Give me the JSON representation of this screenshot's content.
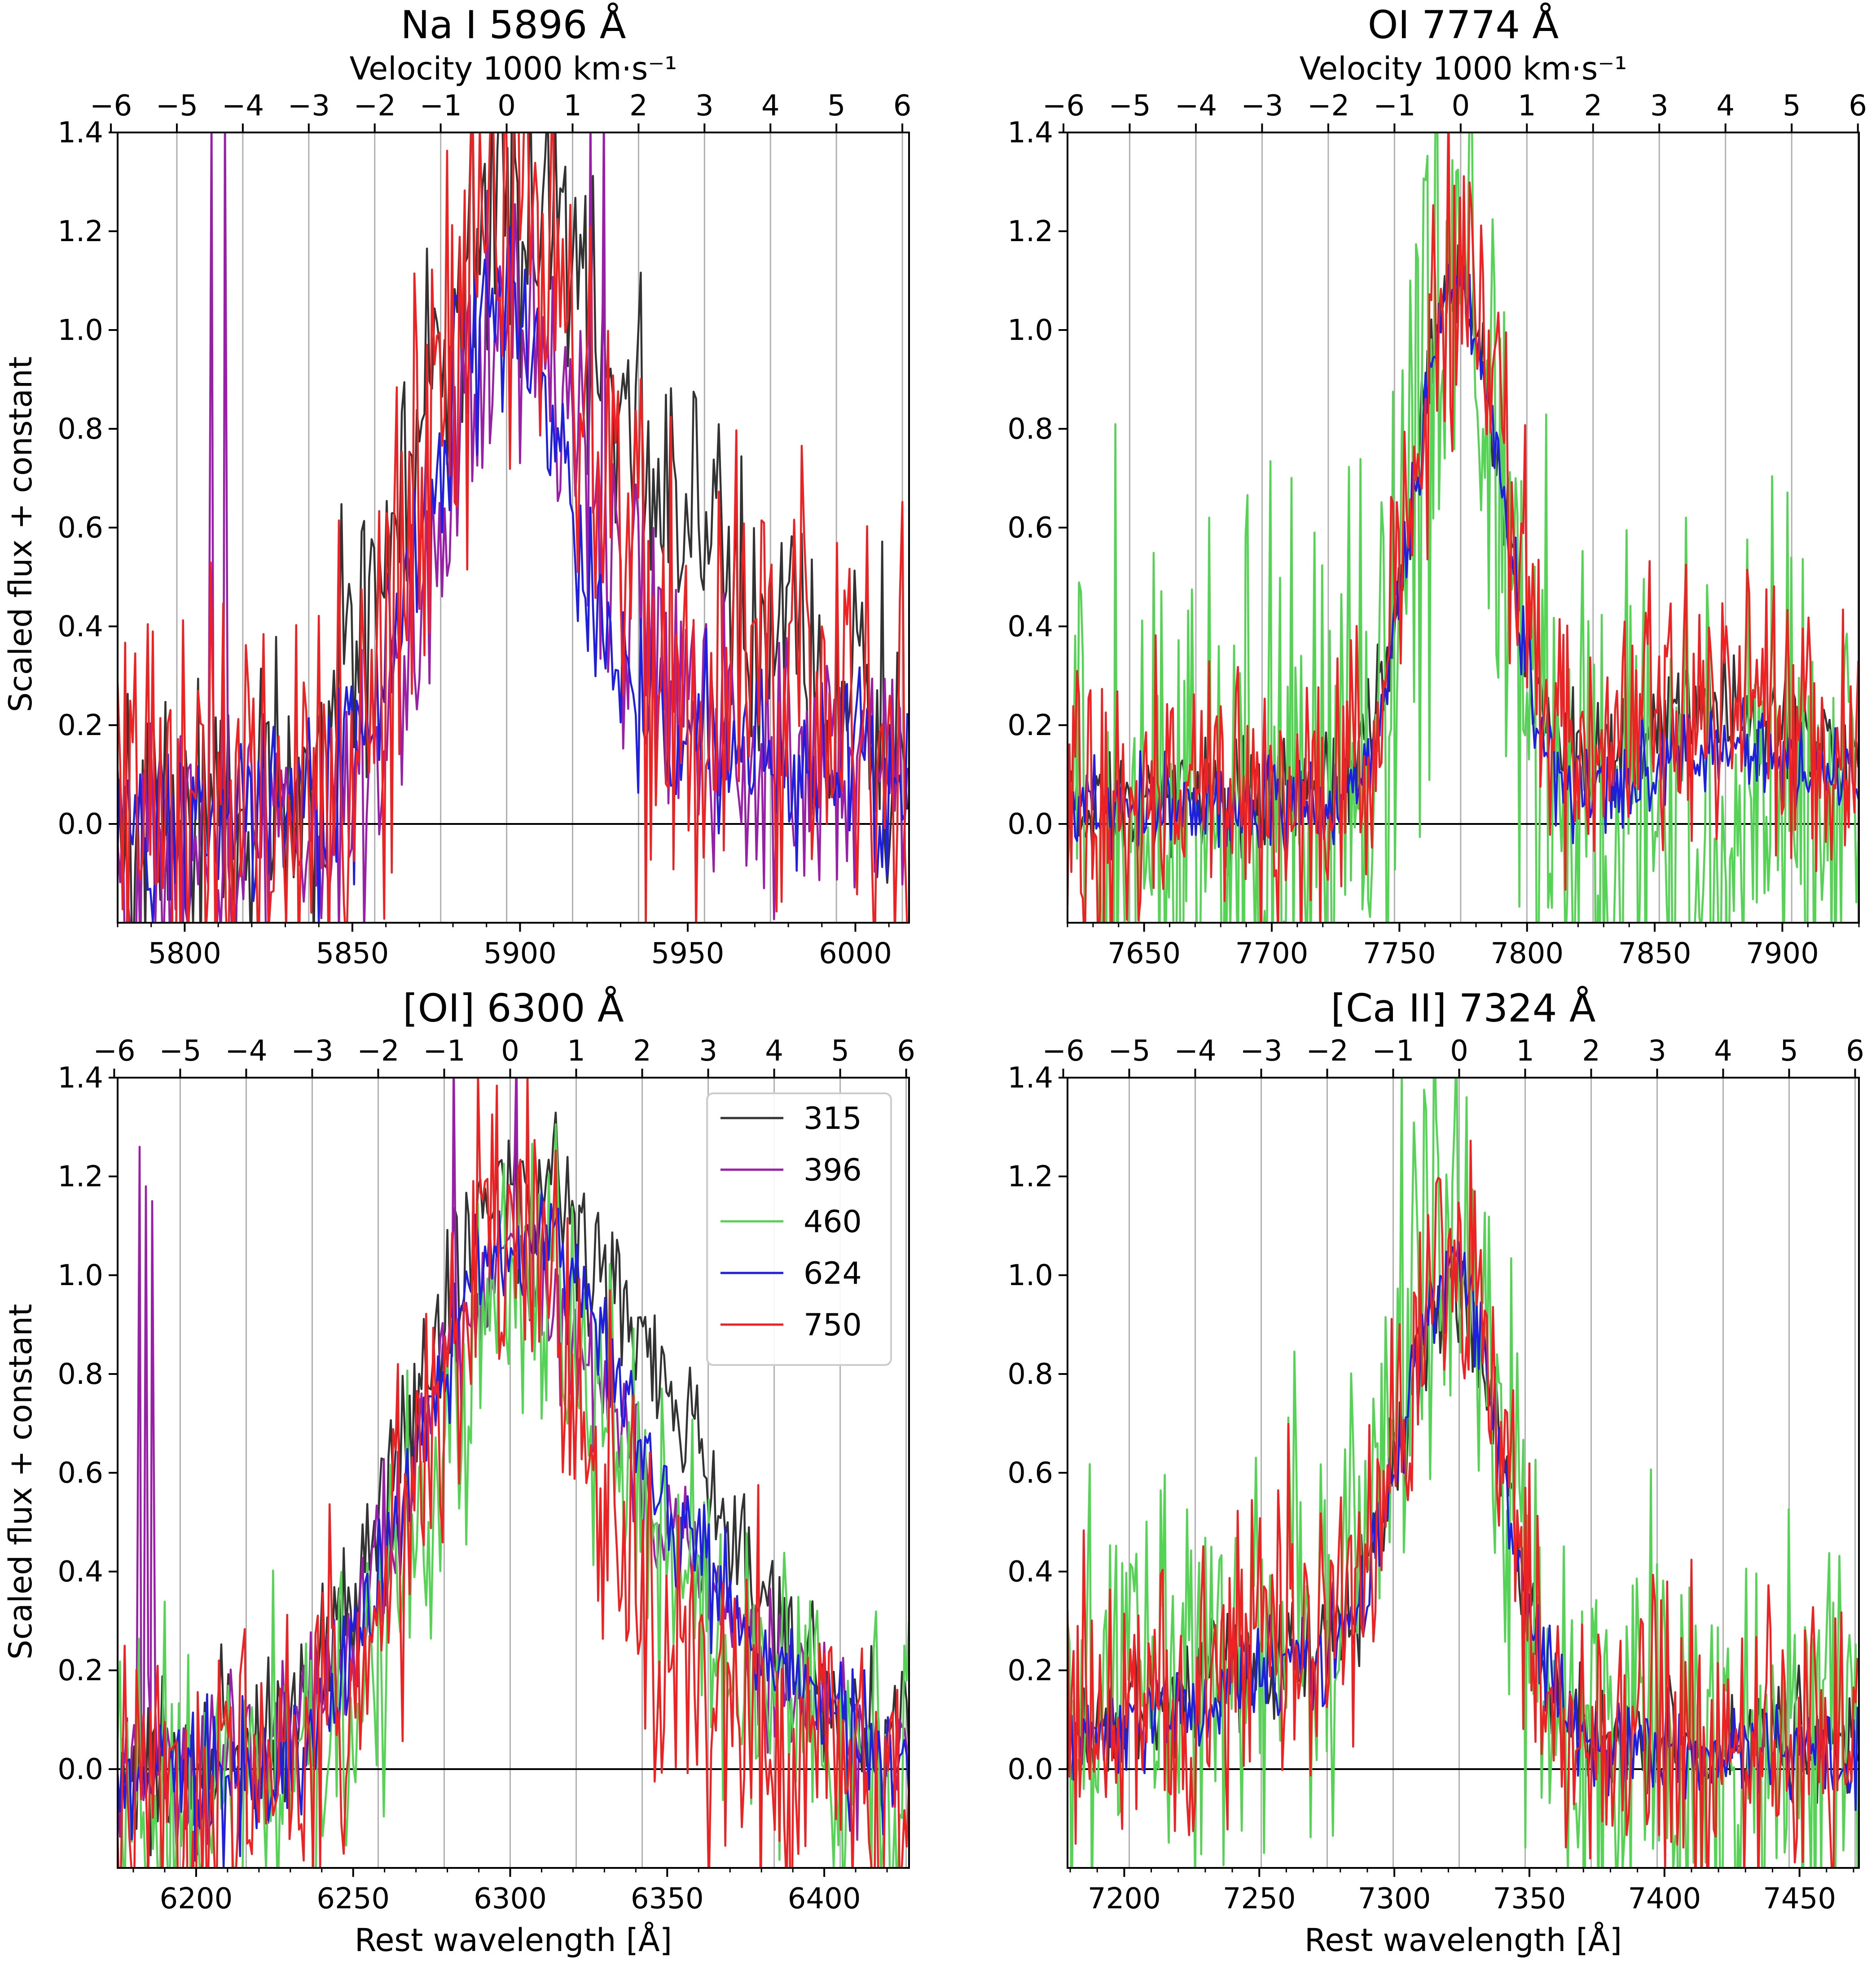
{
  "legend": {
    "entries": [
      {
        "label": "315",
        "color": "#333333"
      },
      {
        "label": "396",
        "color": "#9a1fa8"
      },
      {
        "label": "460",
        "color": "#55d355"
      },
      {
        "label": "624",
        "color": "#1f1fe0"
      },
      {
        "label": "750",
        "color": "#ee2222"
      }
    ]
  },
  "common": {
    "ylabel": "Scaled flux + constant",
    "xlabel": "Rest wavelength [Å]",
    "top_xlabel": "Velocity 1000 km·s⁻¹",
    "ylim": [
      -0.2,
      1.4
    ],
    "yticks": [
      "0.0",
      "0.2",
      "0.4",
      "0.6",
      "0.8",
      "1.0",
      "1.2",
      "1.4"
    ],
    "vel_ticks": [
      "−6",
      "−5",
      "−4",
      "−3",
      "−2",
      "−1",
      "0",
      "1",
      "2",
      "3",
      "4",
      "5",
      "6"
    ],
    "vel_range": [
      -6,
      6
    ]
  },
  "chart_data": [
    {
      "type": "line",
      "title": "Na I 5896 Å",
      "rest": 5896,
      "xlim": [
        5780,
        6016
      ],
      "xticks": [
        5800,
        5850,
        5900,
        5950,
        6000
      ],
      "xlabel": "",
      "top_xlabel": "Velocity 1000 km·s⁻¹",
      "grid_vel": true,
      "series": [
        {
          "name": "315",
          "color": "#333333",
          "x_range": [
            5780,
            6016
          ],
          "profile": {
            "base": 0.0,
            "peak": 1.05,
            "center": 5895,
            "width": 28,
            "broad": 0.45,
            "broad_center": 5950,
            "broad_width": 45,
            "noise": 0.16
          }
        },
        {
          "name": "396",
          "color": "#9a1fa8",
          "x_range": [
            5780,
            6016
          ],
          "profile": {
            "base": -0.05,
            "peak": 1.0,
            "center": 5898,
            "width": 22,
            "broad": 0.22,
            "broad_center": 5960,
            "broad_width": 50,
            "noise": 0.14
          },
          "spikes": [
            [
              5808,
              1.45
            ],
            [
              5812,
              1.45
            ],
            [
              5921,
              1.45
            ],
            [
              5925,
              1.45
            ]
          ]
        },
        {
          "name": "624",
          "color": "#1f1fe0",
          "x_range": [
            5780,
            6016
          ],
          "profile": {
            "base": 0.0,
            "peak": 1.02,
            "center": 5893,
            "width": 20,
            "broad": 0.15,
            "broad_center": 5960,
            "broad_width": 50,
            "noise": 0.1
          }
        },
        {
          "name": "750",
          "color": "#ee2222",
          "x_range": [
            5780,
            6016
          ],
          "profile": {
            "base": 0.05,
            "peak": 1.1,
            "center": 5896,
            "width": 22,
            "broad": 0.22,
            "broad_center": 5955,
            "broad_width": 50,
            "noise": 0.26
          }
        }
      ]
    },
    {
      "type": "line",
      "title": "OI 7774 Å",
      "rest": 7774,
      "xlim": [
        7620,
        7930
      ],
      "xticks": [
        7650,
        7700,
        7750,
        7800,
        7850,
        7900
      ],
      "xlabel": "",
      "top_xlabel": "Velocity 1000 km·s⁻¹",
      "grid_vel": true,
      "series": [
        {
          "name": "315",
          "color": "#333333",
          "x_range": [
            7620,
            7930
          ],
          "profile": {
            "base": 0.05,
            "peak": 1.05,
            "center": 7773,
            "width": 17,
            "broad": 0.18,
            "broad_center": 7880,
            "broad_width": 35,
            "noise": 0.06
          }
        },
        {
          "name": "460",
          "color": "#55d355",
          "x_range": [
            7620,
            7930
          ],
          "profile": {
            "base": 0.0,
            "peak": 1.15,
            "center": 7772,
            "width": 15,
            "broad": 0.1,
            "broad_center": 7880,
            "broad_width": 35,
            "noise": 0.3
          }
        },
        {
          "name": "624",
          "color": "#1f1fe0",
          "x_range": [
            7620,
            7930
          ],
          "profile": {
            "base": 0.03,
            "peak": 1.05,
            "center": 7773,
            "width": 17,
            "broad": 0.12,
            "broad_center": 7880,
            "broad_width": 35,
            "noise": 0.05
          }
        },
        {
          "name": "750",
          "color": "#ee2222",
          "x_range": [
            7620,
            7930
          ],
          "profile": {
            "base": 0.06,
            "peak": 1.05,
            "center": 7774,
            "width": 18,
            "broad": 0.2,
            "broad_center": 7880,
            "broad_width": 35,
            "noise": 0.15
          }
        }
      ]
    },
    {
      "type": "line",
      "title": "[OI] 6300 Å",
      "rest": 6300,
      "xlim": [
        6175,
        6427
      ],
      "xticks": [
        6200,
        6250,
        6300,
        6350,
        6400
      ],
      "xlabel": "Rest wavelength [Å]",
      "top_xlabel": "",
      "grid_vel": true,
      "series": [
        {
          "name": "315",
          "color": "#333333",
          "x_range": [
            6175,
            6427
          ],
          "profile": {
            "base": 0.0,
            "peak": 0.95,
            "center": 6295,
            "width": 32,
            "broad": 0.55,
            "broad_center": 6345,
            "broad_width": 35,
            "noise": 0.08
          }
        },
        {
          "name": "396",
          "color": "#9a1fa8",
          "x_range": [
            6175,
            6427
          ],
          "profile": {
            "base": 0.0,
            "peak": 0.85,
            "center": 6295,
            "width": 30,
            "broad": 0.35,
            "broad_center": 6345,
            "broad_width": 35,
            "noise": 0.08
          },
          "spikes": [
            [
              6182,
              1.26
            ],
            [
              6184,
              1.18
            ],
            [
              6186,
              1.15
            ],
            [
              6282,
              1.45
            ],
            [
              6302,
              1.45
            ]
          ]
        },
        {
          "name": "460",
          "color": "#55d355",
          "x_range": [
            6175,
            6427
          ],
          "profile": {
            "base": -0.05,
            "peak": 0.9,
            "center": 6300,
            "width": 28,
            "broad": 0.35,
            "broad_center": 6345,
            "broad_width": 35,
            "noise": 0.16
          }
        },
        {
          "name": "624",
          "color": "#1f1fe0",
          "x_range": [
            6175,
            6427
          ],
          "profile": {
            "base": -0.02,
            "peak": 0.95,
            "center": 6297,
            "width": 28,
            "broad": 0.4,
            "broad_center": 6345,
            "broad_width": 35,
            "noise": 0.07
          }
        },
        {
          "name": "750",
          "color": "#ee2222",
          "x_range": [
            6175,
            6427
          ],
          "profile": {
            "base": -0.05,
            "peak": 1.05,
            "center": 6296,
            "width": 24,
            "broad": 0.22,
            "broad_center": 6345,
            "broad_width": 35,
            "noise": 0.18
          }
        }
      ]
    },
    {
      "type": "line",
      "title": "[Ca II] 7324 Å",
      "rest": 7324,
      "xlim": [
        7179,
        7472
      ],
      "xticks": [
        7200,
        7250,
        7300,
        7350,
        7400,
        7450
      ],
      "xlabel": "Rest wavelength [Å]",
      "top_xlabel": "",
      "grid_vel": true,
      "series": [
        {
          "name": "315",
          "color": "#333333",
          "x_range": [
            7179,
            7472
          ],
          "profile": {
            "base": 0.05,
            "peak": 0.85,
            "center": 7322,
            "width": 18,
            "broad": 0.2,
            "broad_center": 7270,
            "broad_width": 40,
            "noise": 0.06
          }
        },
        {
          "name": "460",
          "color": "#55d355",
          "x_range": [
            7179,
            7472
          ],
          "profile": {
            "base": 0.05,
            "peak": 0.95,
            "center": 7320,
            "width": 18,
            "broad": 0.28,
            "broad_center": 7260,
            "broad_width": 45,
            "noise": 0.22
          }
        },
        {
          "name": "624",
          "color": "#1f1fe0",
          "x_range": [
            7179,
            7472
          ],
          "profile": {
            "base": 0.03,
            "peak": 0.9,
            "center": 7322,
            "width": 18,
            "broad": 0.2,
            "broad_center": 7270,
            "broad_width": 40,
            "noise": 0.05
          }
        },
        {
          "name": "750",
          "color": "#ee2222",
          "x_range": [
            7179,
            7472
          ],
          "profile": {
            "base": 0.05,
            "peak": 0.9,
            "center": 7322,
            "width": 18,
            "broad": 0.22,
            "broad_center": 7270,
            "broad_width": 40,
            "noise": 0.15
          }
        }
      ]
    }
  ]
}
